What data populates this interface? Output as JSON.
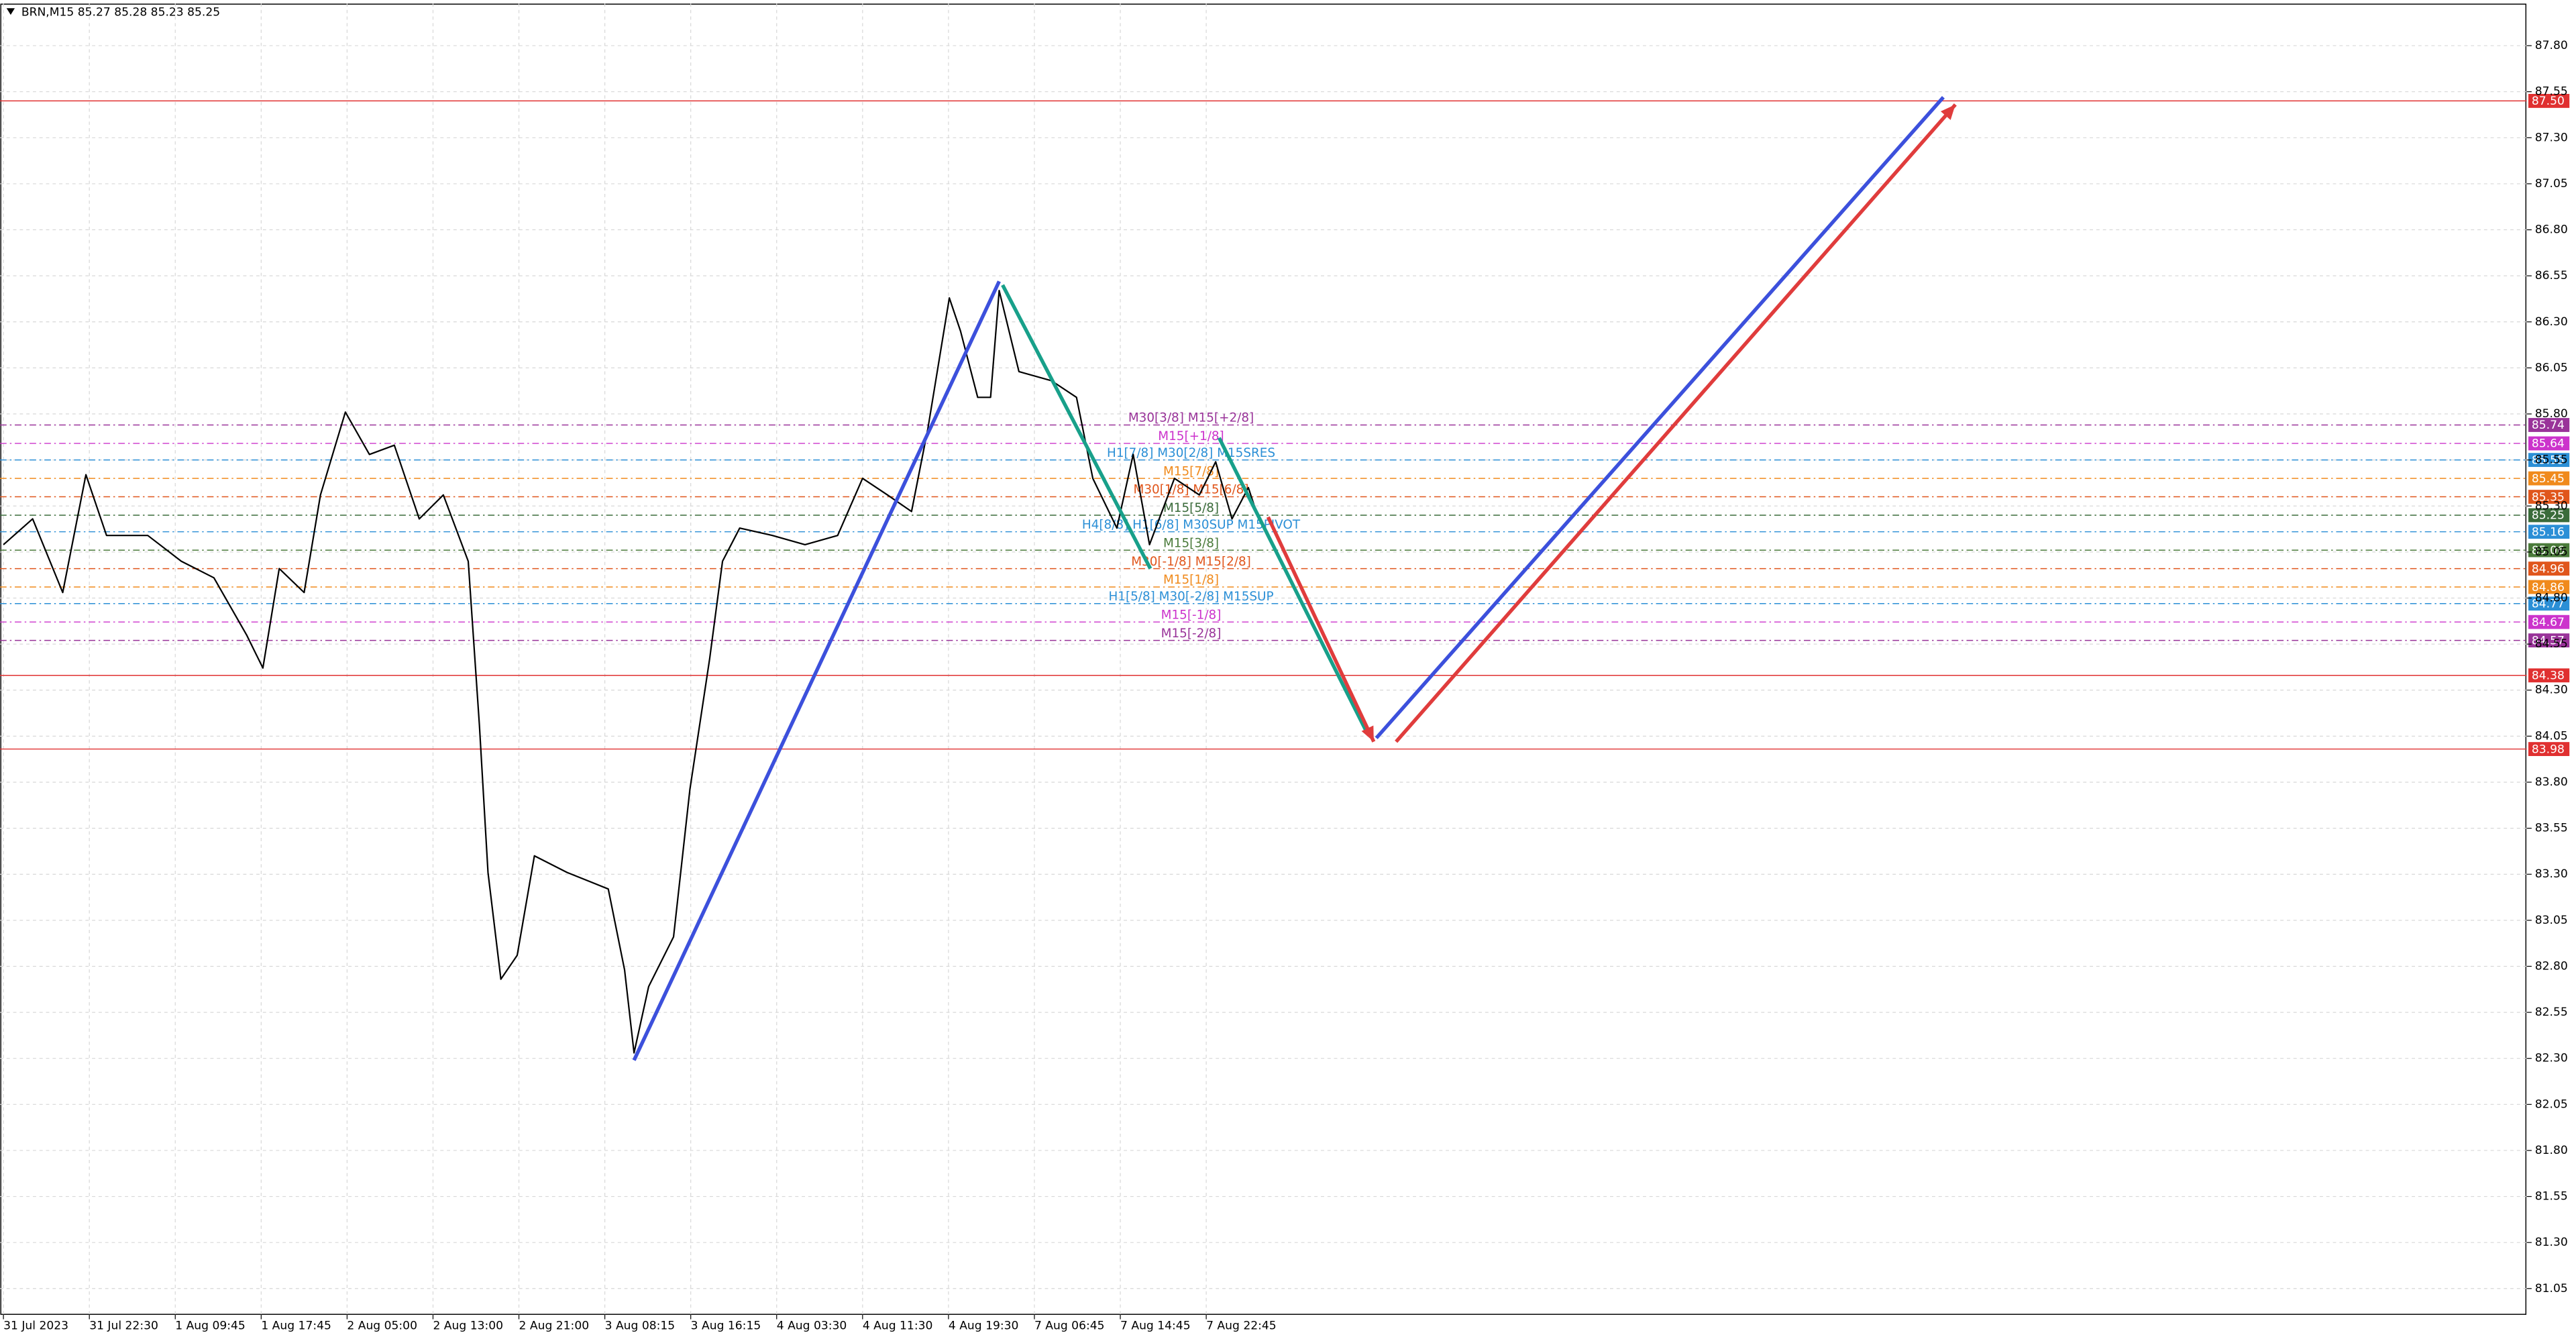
{
  "chart_data": {
    "type": "line",
    "title": "BRN,M15  85.27 85.28 85.23 85.25",
    "xlim": [
      -0.04,
      29.37
    ],
    "ylim": [
      80.91,
      88.03
    ],
    "grid": true,
    "xticks": [
      {
        "value": 0,
        "label": "31 Jul 2023"
      },
      {
        "value": 1,
        "label": "31 Jul 22:30"
      },
      {
        "value": 2,
        "label": "1 Aug 09:45"
      },
      {
        "value": 3,
        "label": "1 Aug 17:45"
      },
      {
        "value": 4,
        "label": "2 Aug 05:00"
      },
      {
        "value": 5,
        "label": "2 Aug 13:00"
      },
      {
        "value": 6,
        "label": "2 Aug 21:00"
      },
      {
        "value": 7,
        "label": "3 Aug 08:15"
      },
      {
        "value": 8,
        "label": "3 Aug 16:15"
      },
      {
        "value": 9,
        "label": "4 Aug 03:30"
      },
      {
        "value": 10,
        "label": "4 Aug 11:30"
      },
      {
        "value": 11,
        "label": "4 Aug 19:30"
      },
      {
        "value": 12,
        "label": "7 Aug 06:45"
      },
      {
        "value": 13,
        "label": "7 Aug 14:45"
      },
      {
        "value": 14,
        "label": "7 Aug 22:45"
      }
    ],
    "yticks": [
      {
        "value": 87.8,
        "label": "87.80"
      },
      87.55,
      {
        "value": 87.3,
        "label": "87.30"
      },
      87.05,
      {
        "value": 86.8,
        "label": "86.80"
      },
      86.55,
      {
        "value": 86.3,
        "label": "86.30"
      },
      86.05,
      {
        "value": 85.8,
        "label": "85.80"
      },
      85.55,
      {
        "value": 85.3,
        "label": "85.30"
      },
      85.05,
      {
        "value": 84.8,
        "label": "84.80"
      },
      84.55,
      {
        "value": 84.3,
        "label": "84.30"
      },
      84.05,
      {
        "value": 83.8,
        "label": "83.80"
      },
      83.55,
      {
        "value": 83.3,
        "label": "83.30"
      },
      83.05,
      {
        "value": 82.8,
        "label": "82.80"
      },
      82.55,
      {
        "value": 82.3,
        "label": "82.30"
      },
      82.05,
      {
        "value": 81.8,
        "label": "81.80"
      },
      81.55,
      {
        "value": 81.3,
        "label": "81.30"
      },
      81.05
    ],
    "series": [
      {
        "color": "#000000",
        "x": [
          0,
          0.34,
          0.69,
          0.96,
          1.2,
          1.68,
          2.07,
          2.45,
          2.83,
          3.02,
          3.21,
          3.5,
          3.69,
          3.98,
          4.26,
          4.55,
          4.84,
          5.12,
          5.41,
          5.54,
          5.64,
          5.79,
          5.98,
          6.18,
          6.56,
          7.04,
          7.23,
          7.34,
          7.51,
          7.8,
          7.99,
          8.22,
          8.37,
          8.57,
          8.95,
          9.33,
          9.71,
          10.0,
          10.29,
          10.57,
          10.76,
          11.01,
          11.14,
          11.34,
          11.49,
          11.59,
          11.82,
          12.2,
          12.49,
          12.68,
          12.96,
          13.15,
          13.34,
          13.63,
          13.92,
          14.11,
          14.3,
          14.49,
          14.61
        ],
        "values": [
          85.09,
          85.23,
          84.83,
          85.47,
          85.14,
          85.14,
          85.0,
          84.91,
          84.6,
          84.42,
          84.96,
          84.83,
          85.36,
          85.81,
          85.58,
          85.63,
          85.23,
          85.36,
          85.0,
          84.11,
          83.31,
          82.73,
          82.86,
          83.4,
          83.31,
          83.22,
          82.78,
          82.33,
          82.69,
          82.96,
          83.76,
          84.47,
          85.0,
          85.18,
          85.14,
          85.09,
          85.14,
          85.45,
          85.36,
          85.27,
          85.72,
          86.43,
          86.25,
          85.89,
          85.89,
          86.47,
          86.03,
          85.98,
          85.89,
          85.45,
          85.18,
          85.58,
          85.09,
          85.45,
          85.36,
          85.54,
          85.23,
          85.4,
          85.23
        ]
      }
    ],
    "levels": [
      {
        "value": {
          "value": 87.5,
          "label": "87.50"
        },
        "color": "#e03030",
        "style": "solid"
      },
      {
        "value": 85.74,
        "color": "#993399",
        "style": "dash",
        "text": "M30[3/8] M15[+2/8]"
      },
      {
        "value": 85.64,
        "color": "#cc33cc",
        "style": "dash",
        "text": "M15[+1/8]"
      },
      {
        "value": 85.55,
        "color": "#2b8fd6",
        "style": "dash",
        "text": "H1[7/8] M30[2/8] M15SRES"
      },
      {
        "value": 85.45,
        "color": "#f08a1c",
        "style": "dash",
        "text": "M15[7/8]"
      },
      {
        "value": 85.35,
        "color": "#e0561c",
        "style": "dash",
        "text": "M30[1/8] M15[6/8]"
      },
      {
        "value": 85.25,
        "color": "#3a6b3a",
        "style": "dash",
        "text": "M15[5/8]"
      },
      {
        "value": 85.16,
        "color": "#2b8fd6",
        "style": "dash",
        "text": "H4[8/8] H1[6/8] M30SUP M15PIVOT"
      },
      {
        "value": 85.06,
        "color": "#4a7a3a",
        "style": "dash",
        "text": "M15[3/8]"
      },
      {
        "value": 84.96,
        "color": "#e0561c",
        "style": "dash",
        "text": "M30[-1/8] M15[2/8]"
      },
      {
        "value": 84.86,
        "color": "#f08a1c",
        "style": "dash",
        "text": "M15[1/8]"
      },
      {
        "value": 84.77,
        "color": "#2b8fd6",
        "style": "dash",
        "text": "H1[5/8] M30[-2/8] M15SUP"
      },
      {
        "value": 84.67,
        "color": "#cc33cc",
        "style": "dash",
        "text": "M15[-1/8]"
      },
      {
        "value": 84.57,
        "color": "#993399",
        "style": "dash",
        "text": "M15[-2/8]"
      },
      {
        "value": 84.38,
        "color": "#e03030",
        "style": "solid"
      },
      {
        "value": 83.98,
        "color": "#e03030",
        "style": "solid"
      }
    ],
    "drawings": [
      {
        "color": "#3c50dc",
        "x": [
          7.34,
          11.59
        ],
        "y": [
          82.29,
          86.52
        ],
        "arrow": false
      },
      {
        "color": "#18a08a",
        "x": [
          11.63,
          13.35
        ],
        "y": [
          86.5,
          84.96
        ],
        "arrow": false
      },
      {
        "color": "#18a08a",
        "x": [
          14.15,
          15.87
        ],
        "y": [
          85.67,
          84.07
        ],
        "arrow": false
      },
      {
        "color": "#3c50dc",
        "x": [
          15.98,
          22.58
        ],
        "y": [
          84.04,
          87.52
        ],
        "arrow": false
      },
      {
        "color": "#e03c3c",
        "x": [
          14.72,
          15.95
        ],
        "y": [
          85.24,
          84.02
        ],
        "arrow": true
      },
      {
        "color": "#e03c3c",
        "x": [
          16.21,
          22.72
        ],
        "y": [
          84.02,
          87.48
        ],
        "arrow": true
      }
    ]
  }
}
